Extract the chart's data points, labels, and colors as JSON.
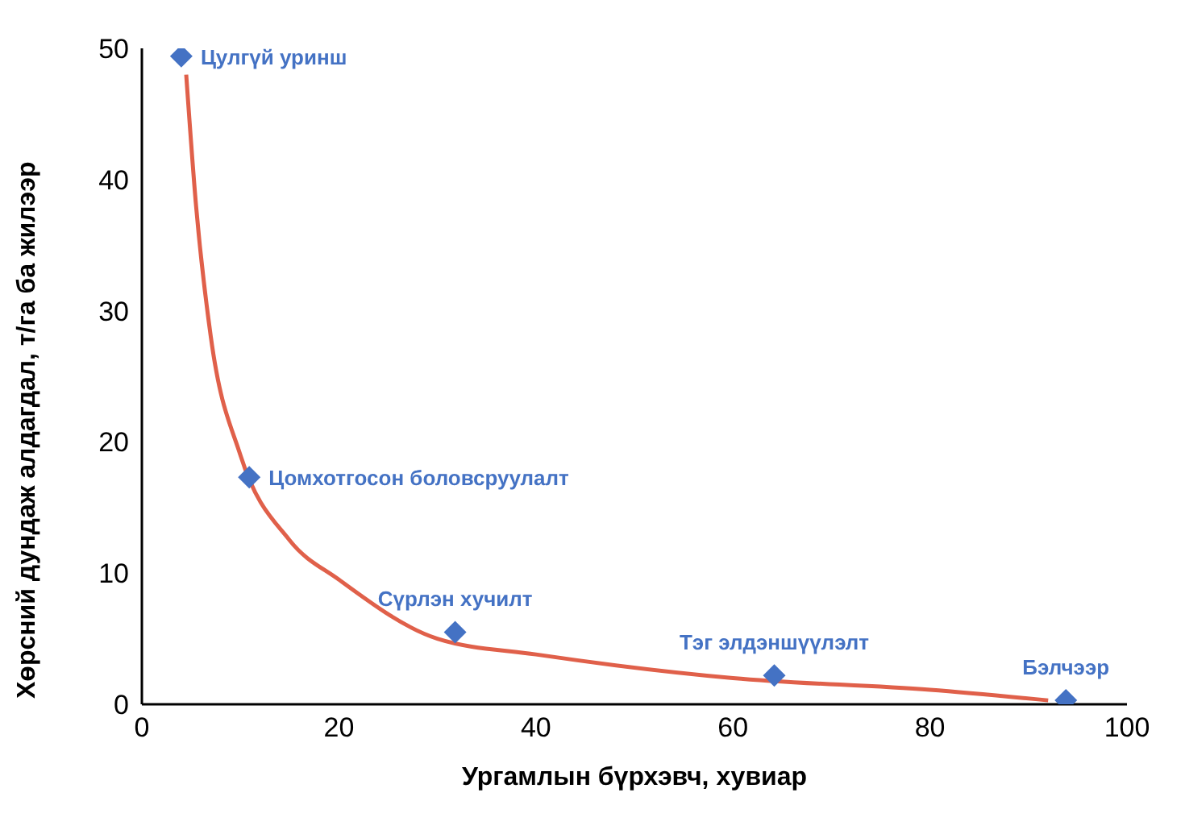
{
  "chart_data": {
    "type": "scatter",
    "xlabel": "Ургамлын бүрхэвч, хувиар",
    "ylabel": "Хөрсний дундаж алдагдал, т/га ба жилээр",
    "xlim": [
      0,
      100
    ],
    "xticks": [
      0,
      20,
      40,
      60,
      80,
      100
    ],
    "ylim": [
      0,
      50
    ],
    "yticks": [
      0,
      10,
      20,
      30,
      40,
      50
    ],
    "grid": false,
    "marker": "diamond",
    "series": [
      {
        "type": "line",
        "color": "#e0604a",
        "marker": "none",
        "x": [
          4.5,
          5.5,
          7,
          10,
          15,
          20,
          30,
          40,
          60,
          80,
          92
        ],
        "values": [
          48,
          38,
          28,
          19,
          12.5,
          9.5,
          5,
          3.8,
          2,
          1.1,
          0.3
        ]
      },
      {
        "color": "#4472c4",
        "x": [
          4,
          10.9,
          31.8,
          64.2,
          93.8
        ],
        "values": [
          49.4,
          17.3,
          5.5,
          2.2,
          0.3
        ]
      }
    ],
    "annotations": [
      {
        "text": "Цулгүй уринш",
        "x": 4,
        "y": 49.4
      },
      {
        "text": "Цомхотгосон боловсруулалт",
        "x": 10.9,
        "y": 17.3
      },
      {
        "text": "Сүрлэн хучилт",
        "x": 31.8,
        "y": 5.5
      },
      {
        "text": "Тэг элдэншүүлэлт",
        "x": 64.2,
        "y": 2.2
      },
      {
        "text": "Бэлчээр",
        "x": 93.8,
        "y": 0.3
      }
    ]
  }
}
